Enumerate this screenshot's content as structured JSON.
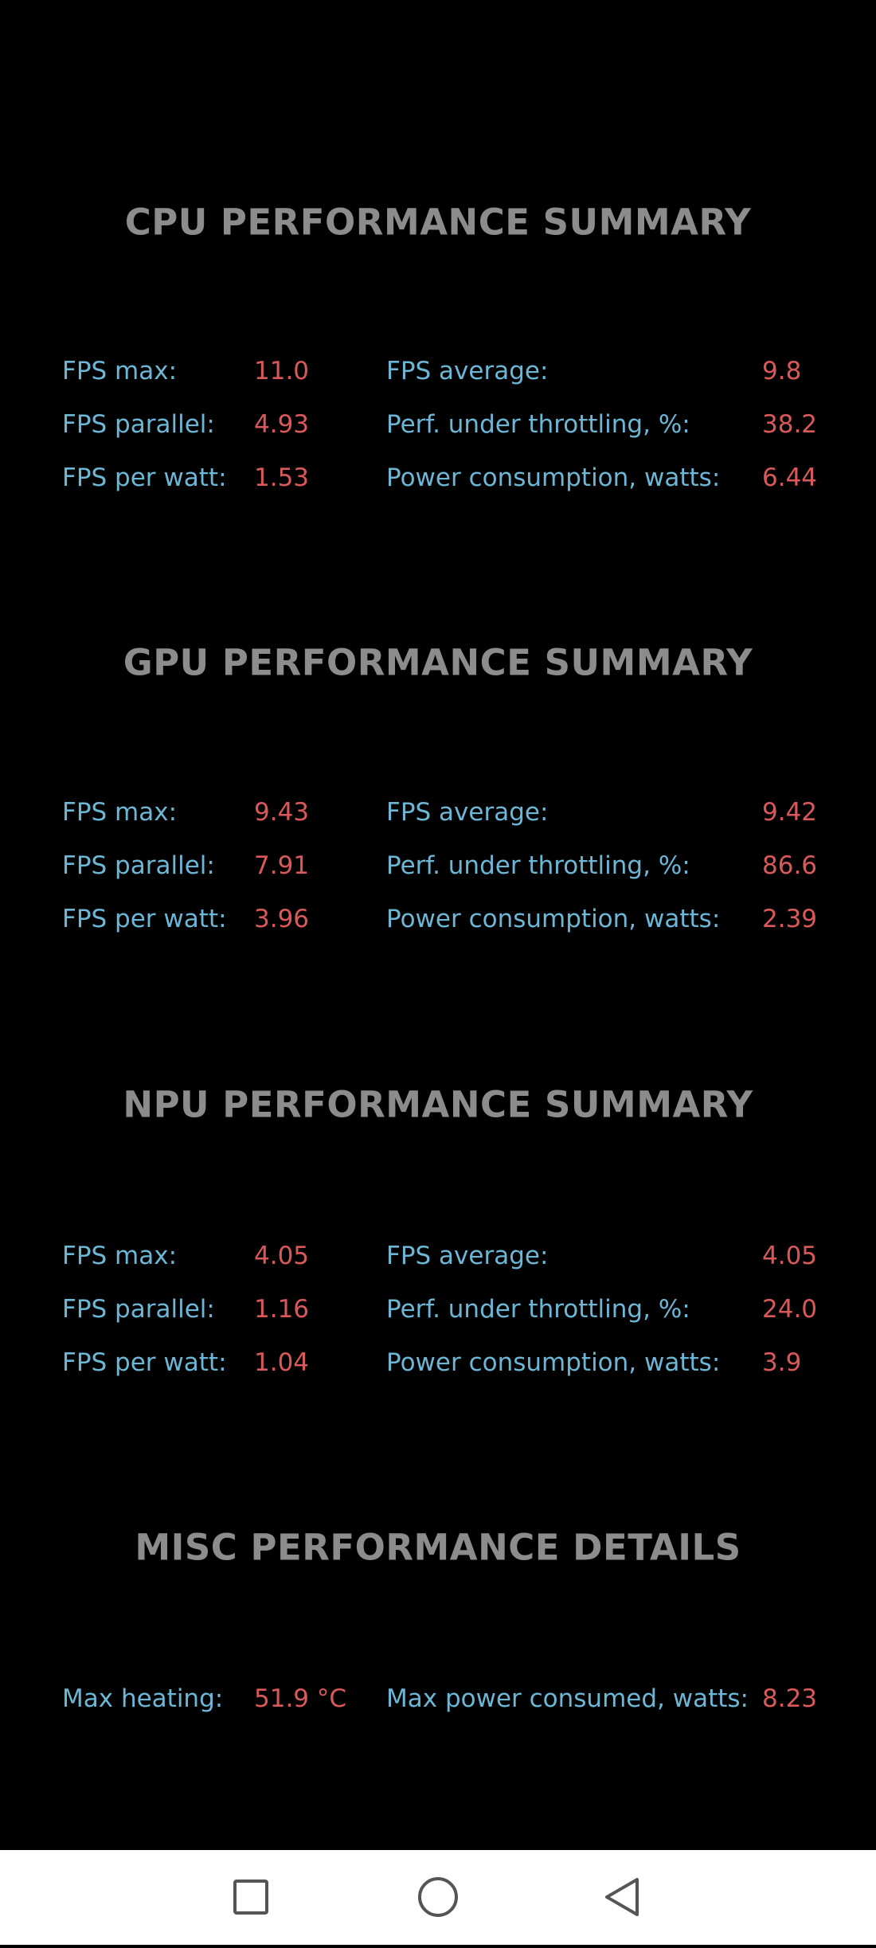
{
  "sections": [
    {
      "title": "CPU PERFORMANCE SUMMARY",
      "rows": [
        [
          "FPS max:",
          "11.0",
          "FPS average:",
          "9.8"
        ],
        [
          "FPS parallel:",
          "4.93",
          "Perf. under throttling, %:",
          "38.2"
        ],
        [
          "FPS per watt:",
          "1.53",
          "Power consumption, watts:",
          "6.44"
        ]
      ]
    },
    {
      "title": "GPU PERFORMANCE SUMMARY",
      "rows": [
        [
          "FPS max:",
          "9.43",
          "FPS average:",
          "9.42"
        ],
        [
          "FPS parallel:",
          "7.91",
          "Perf. under throttling, %:",
          "86.6"
        ],
        [
          "FPS per watt:",
          "3.96",
          "Power consumption, watts:",
          "2.39"
        ]
      ]
    },
    {
      "title": "NPU PERFORMANCE SUMMARY",
      "rows": [
        [
          "FPS max:",
          "4.05",
          "FPS average:",
          "4.05"
        ],
        [
          "FPS parallel:",
          "1.16",
          "Perf. under throttling, %:",
          "24.0"
        ],
        [
          "FPS per watt:",
          "1.04",
          "Power consumption, watts:",
          "3.9"
        ]
      ]
    },
    {
      "title": "MISC PERFORMANCE DETAILS",
      "rows": [
        [
          "Max heating:",
          "51.9 °C",
          "Max power consumed, watts:",
          "8.23"
        ]
      ]
    }
  ]
}
